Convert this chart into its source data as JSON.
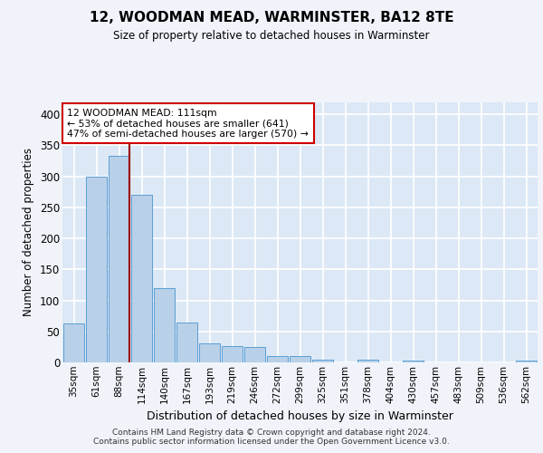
{
  "title": "12, WOODMAN MEAD, WARMINSTER, BA12 8TE",
  "subtitle": "Size of property relative to detached houses in Warminster",
  "xlabel": "Distribution of detached houses by size in Warminster",
  "ylabel": "Number of detached properties",
  "bar_color": "#b8d0e8",
  "bar_edge_color": "#5a9fd4",
  "background_color": "#dce8f5",
  "plot_bg_color": "#dce8f5",
  "fig_bg_color": "#f0f4fa",
  "grid_color": "#ffffff",
  "bins": [
    "35sqm",
    "61sqm",
    "88sqm",
    "114sqm",
    "140sqm",
    "167sqm",
    "193sqm",
    "219sqm",
    "246sqm",
    "272sqm",
    "299sqm",
    "325sqm",
    "351sqm",
    "378sqm",
    "404sqm",
    "430sqm",
    "457sqm",
    "483sqm",
    "509sqm",
    "536sqm",
    "562sqm"
  ],
  "values": [
    63,
    300,
    333,
    270,
    120,
    65,
    30,
    27,
    25,
    10,
    10,
    5,
    0,
    4,
    0,
    3,
    0,
    0,
    0,
    0,
    3
  ],
  "property_bin_index": 2,
  "vline_color": "#990000",
  "annotation_text": "12 WOODMAN MEAD: 111sqm\n← 53% of detached houses are smaller (641)\n47% of semi-detached houses are larger (570) →",
  "annotation_box_color": "#ffffff",
  "annotation_box_edge": "#cc0000",
  "ylim": [
    0,
    420
  ],
  "yticks": [
    0,
    50,
    100,
    150,
    200,
    250,
    300,
    350,
    400
  ],
  "footer": "Contains HM Land Registry data © Crown copyright and database right 2024.\nContains public sector information licensed under the Open Government Licence v3.0."
}
